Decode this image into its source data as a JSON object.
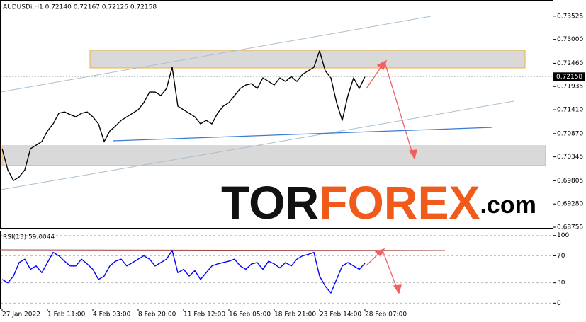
{
  "chart_data": [
    {
      "type": "line",
      "title": "AUDUSDi,H1  0.72140 0.72167 0.72126 0.72158",
      "categories": [
        "27 Jan 2022",
        null,
        null,
        null,
        null,
        null,
        null,
        null,
        "1 Feb 11:00",
        null,
        null,
        null,
        null,
        null,
        null,
        null,
        "4 Feb 03:00",
        null,
        null,
        null,
        null,
        null,
        null,
        null,
        "8 Feb 20:00",
        null,
        null,
        null,
        null,
        null,
        null,
        null,
        "11 Feb 12:00",
        null,
        null,
        null,
        null,
        null,
        null,
        null,
        "16 Feb 05:00",
        null,
        null,
        null,
        null,
        null,
        null,
        null,
        "18 Feb 21:00",
        null,
        null,
        null,
        null,
        null,
        null,
        null,
        "23 Feb 14:00",
        null,
        null,
        null,
        null,
        null,
        null,
        null,
        "28 Feb 07:00"
      ],
      "series": [
        {
          "name": "AUDUSDi",
          "color": "#000000",
          "values": [
            0.7053,
            0.7005,
            0.6981,
            0.6989,
            0.7005,
            0.7053,
            0.7061,
            0.7069,
            0.7093,
            0.7109,
            0.7133,
            0.7136,
            0.713,
            0.7125,
            0.7133,
            0.7136,
            0.7125,
            0.7109,
            0.7069,
            0.7093,
            0.7104,
            0.7117,
            0.7125,
            0.7133,
            0.7141,
            0.7157,
            0.7181,
            0.7181,
            0.7173,
            0.7189,
            0.7237,
            0.7149,
            0.7141,
            0.7133,
            0.7125,
            0.7109,
            0.7117,
            0.7109,
            0.7133,
            0.7149,
            0.7157,
            0.7173,
            0.7189,
            0.7197,
            0.72,
            0.7189,
            0.7213,
            0.7205,
            0.7197,
            0.7213,
            0.7205,
            0.7216,
            0.7205,
            0.7221,
            0.7229,
            0.7237,
            0.7274,
            0.7229,
            0.7213,
            0.7157,
            0.7117,
            0.7173,
            0.7213,
            0.7189,
            0.72158
          ]
        }
      ],
      "ylim": [
        0.6874,
        0.7381
      ],
      "yticks": [
        0.73525,
        {
          "value": 0.73,
          "label": "0.73000"
        },
        {
          "value": 0.7246,
          "label": "0.72460"
        },
        0.71935,
        {
          "value": 0.7141,
          "label": "0.71410"
        },
        {
          "value": 0.7087,
          "label": "0.70870"
        },
        0.70345,
        0.69805,
        {
          "value": 0.6928,
          "label": "0.69280"
        },
        0.68755
      ]
    },
    {
      "type": "line",
      "title": "RSI(13) 59.0044",
      "series": [
        {
          "name": "RSI(13)",
          "color": "#0000ff",
          "values": [
            35,
            30,
            40,
            60,
            65,
            50,
            55,
            45,
            60,
            75,
            70,
            62,
            55,
            55,
            65,
            58,
            50,
            35,
            40,
            55,
            62,
            65,
            55,
            60,
            65,
            70,
            65,
            55,
            60,
            65,
            78,
            45,
            50,
            40,
            48,
            35,
            45,
            55,
            58,
            60,
            62,
            65,
            55,
            50,
            58,
            60,
            50,
            62,
            58,
            52,
            60,
            55,
            65,
            70,
            72,
            75,
            40,
            25,
            15,
            35,
            55,
            60,
            55,
            50,
            59.0044
          ]
        }
      ],
      "ylim": [
        -8,
        106
      ],
      "yticks": [
        100,
        70,
        30,
        0
      ]
    }
  ],
  "watermark": {
    "dark": "TOR",
    "orange": "FOREX",
    "suffix": ".com"
  }
}
